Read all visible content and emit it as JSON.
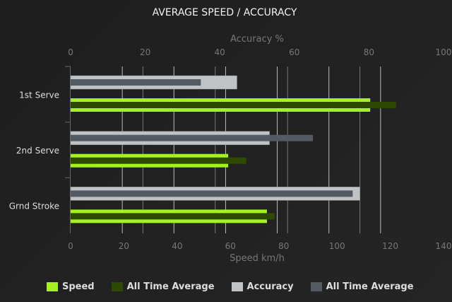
{
  "chart_data": {
    "type": "bar",
    "orientation": "horizontal",
    "title": "AVERAGE SPEED / ACCURACY",
    "categories": [
      "1st Serve",
      "2nd Serve",
      "Grnd Stroke"
    ],
    "x_bottom": {
      "label": "Speed km/h",
      "range": [
        0,
        140
      ],
      "ticks": [
        0,
        20,
        40,
        60,
        80,
        100,
        120,
        140
      ]
    },
    "x_top": {
      "label": "Accuracy %",
      "range": [
        0,
        100
      ],
      "ticks": [
        0,
        20,
        40,
        60,
        80,
        100
      ]
    },
    "grid": true,
    "legend_position": "bottom",
    "series": [
      {
        "name": "Speed",
        "axis": "bottom",
        "color": "#a6f21e",
        "values": [
          116,
          61,
          76
        ]
      },
      {
        "name": "All Time Average",
        "axis": "bottom",
        "color": "#2e4a00",
        "values": [
          126,
          68,
          79
        ]
      },
      {
        "name": "Accuracy",
        "axis": "top",
        "color": "#bfc3c6",
        "values": [
          46,
          55,
          80
        ]
      },
      {
        "name": "All Time Average",
        "axis": "top",
        "color": "#545a62",
        "values": [
          36,
          67,
          78
        ]
      }
    ]
  }
}
